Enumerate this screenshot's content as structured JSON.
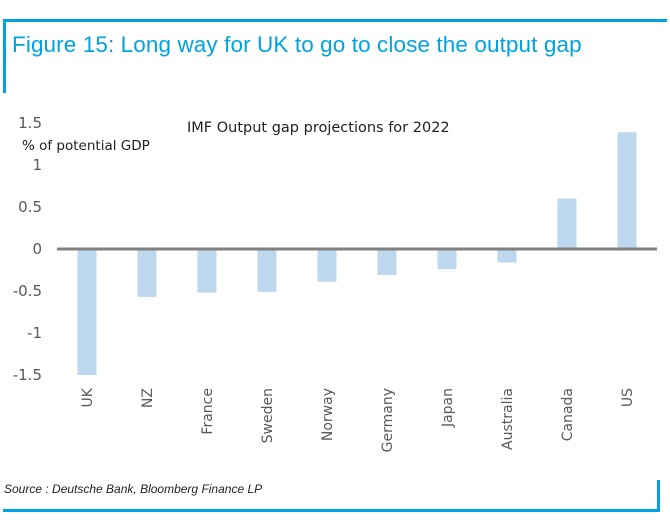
{
  "figure": {
    "title": "Figure 15: Long way for UK to go to close the output gap",
    "source": "Source : Deutsche Bank, Bloomberg Finance LP"
  },
  "colors": {
    "accent": "#00a3e0",
    "bar": "#bdd7ee",
    "axis": "#808080"
  },
  "chart_data": {
    "type": "bar",
    "title": "IMF Output gap projections for 2022",
    "xlabel": "",
    "ylabel": "% of potential GDP",
    "ylim": [
      -1.5,
      1.5
    ],
    "yticks": [
      1.5,
      1,
      0.5,
      0,
      -0.5,
      -1,
      -1.5
    ],
    "ytick_labels": [
      "1.5",
      "1",
      "0.5",
      "0",
      "-0.5",
      "-1",
      "-1.5"
    ],
    "grid": false,
    "legend": "none",
    "categories": [
      "UK",
      "NZ",
      "France",
      "Sweden",
      "Norway",
      "Germany",
      "Japan",
      "Australia",
      "Canada",
      "US"
    ],
    "values": [
      -1.5,
      -0.57,
      -0.52,
      -0.51,
      -0.39,
      -0.31,
      -0.24,
      -0.16,
      0.6,
      1.39
    ]
  }
}
